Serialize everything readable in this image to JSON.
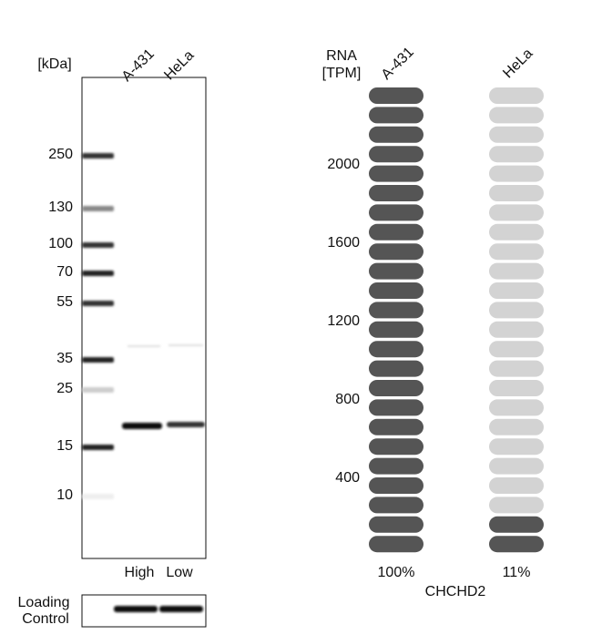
{
  "blot": {
    "unit": "[kDa]",
    "lanes": [
      "A-431",
      "HeLa"
    ],
    "markers": [
      "250",
      "130",
      "100",
      "70",
      "55",
      "35",
      "25",
      "15",
      "10"
    ],
    "levels": [
      "High",
      "Low"
    ],
    "loading_control": [
      "Loading",
      "Control"
    ]
  },
  "rna": {
    "unit": [
      "RNA",
      "[TPM]"
    ],
    "samples": [
      {
        "name": "A-431",
        "percent": {
          "value": 100,
          "label": "100%"
        }
      },
      {
        "name": "HeLa",
        "percent": {
          "value": 11,
          "label": "11%"
        }
      }
    ],
    "ticks": [
      400,
      800,
      1200,
      1600,
      2000
    ],
    "gene": "CHCHD2"
  }
}
